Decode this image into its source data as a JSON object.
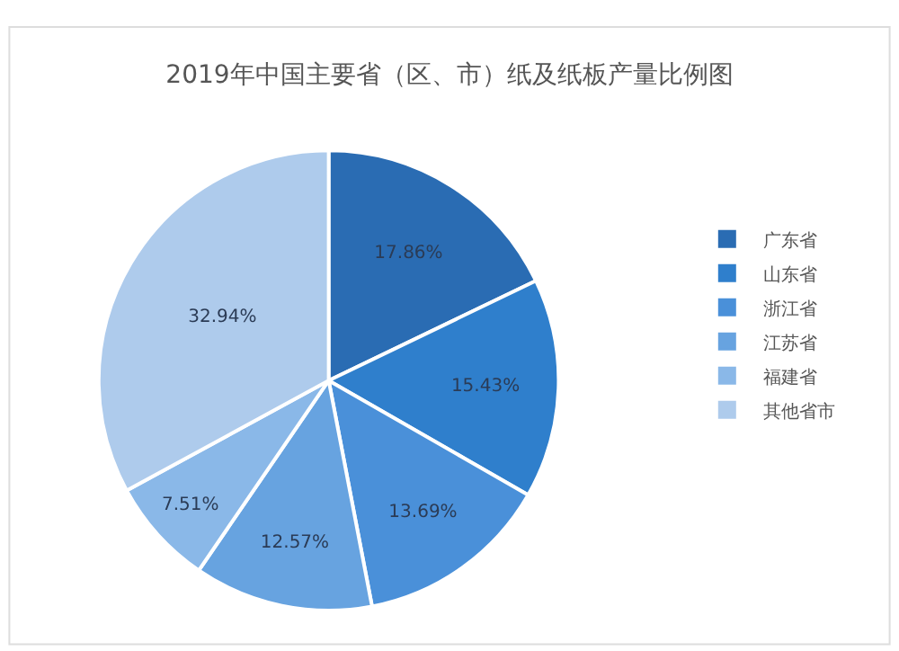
{
  "chart_data": {
    "type": "pie",
    "title": "2019年中国主要省（区、市）纸及纸板产量比例图",
    "categories": [
      "广东省",
      "山东省",
      "浙江省",
      "江苏省",
      "福建省",
      "其他省市"
    ],
    "values": [
      17.86,
      15.43,
      13.69,
      12.57,
      7.51,
      32.94
    ],
    "value_labels": [
      "17.86%",
      "15.43%",
      "13.69%",
      "12.57%",
      "7.51%",
      "32.94%"
    ],
    "colors": [
      "#2a6cb3",
      "#2f7fcc",
      "#4a90d9",
      "#67a3e0",
      "#8ab8e8",
      "#aecbec"
    ],
    "legend": "right"
  }
}
